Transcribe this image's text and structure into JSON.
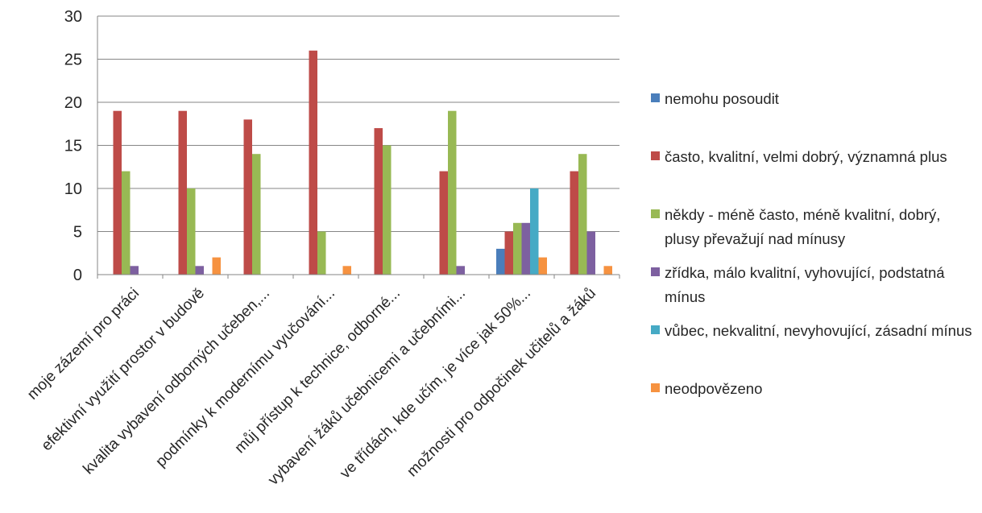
{
  "chart_data": {
    "type": "bar",
    "title": "",
    "xlabel": "",
    "ylabel": "",
    "ylim": [
      0,
      30
    ],
    "yticks": [
      0,
      5,
      10,
      15,
      20,
      25,
      30
    ],
    "grid": true,
    "legend_position": "right",
    "categories": [
      "moje zázemí pro práci",
      "efektivní využití prostor v budově",
      "kvalita vybavení odborných učeben,...",
      "podmínky k modernímu vyučování...",
      "můj přístup k technice, odborné...",
      "vybavení žáků učebnicemi a učebními...",
      "ve třídách, kde učím, je více jak 50%...",
      "možnosti pro odpočinek učitelů a žáků"
    ],
    "series": [
      {
        "name": "nemohu posoudit",
        "color": "#4a7ebb",
        "values": [
          0,
          0,
          0,
          0,
          0,
          0,
          3,
          0
        ]
      },
      {
        "name": "často, kvalitní, velmi dobrý, významná plus",
        "color": "#be4b48",
        "values": [
          19,
          19,
          18,
          26,
          17,
          12,
          5,
          12
        ]
      },
      {
        "name": "někdy - méně často, méně kvalitní, dobrý, plusy převažují nad mínusy",
        "color": "#98b954",
        "values": [
          12,
          10,
          14,
          5,
          15,
          19,
          6,
          14
        ]
      },
      {
        "name": "zřídka, málo kvalitní, vyhovující, podstatná mínus",
        "color": "#7d60a0",
        "values": [
          1,
          1,
          0,
          0,
          0,
          1,
          6,
          5
        ]
      },
      {
        "name": "vůbec, nekvalitní, nevyhovující, zásadní mínus",
        "color": "#46aac5",
        "values": [
          0,
          0,
          0,
          0,
          0,
          0,
          10,
          0
        ]
      },
      {
        "name": "neodpovězeno",
        "color": "#f69240",
        "values": [
          0,
          2,
          0,
          1,
          0,
          0,
          2,
          1
        ]
      }
    ]
  }
}
